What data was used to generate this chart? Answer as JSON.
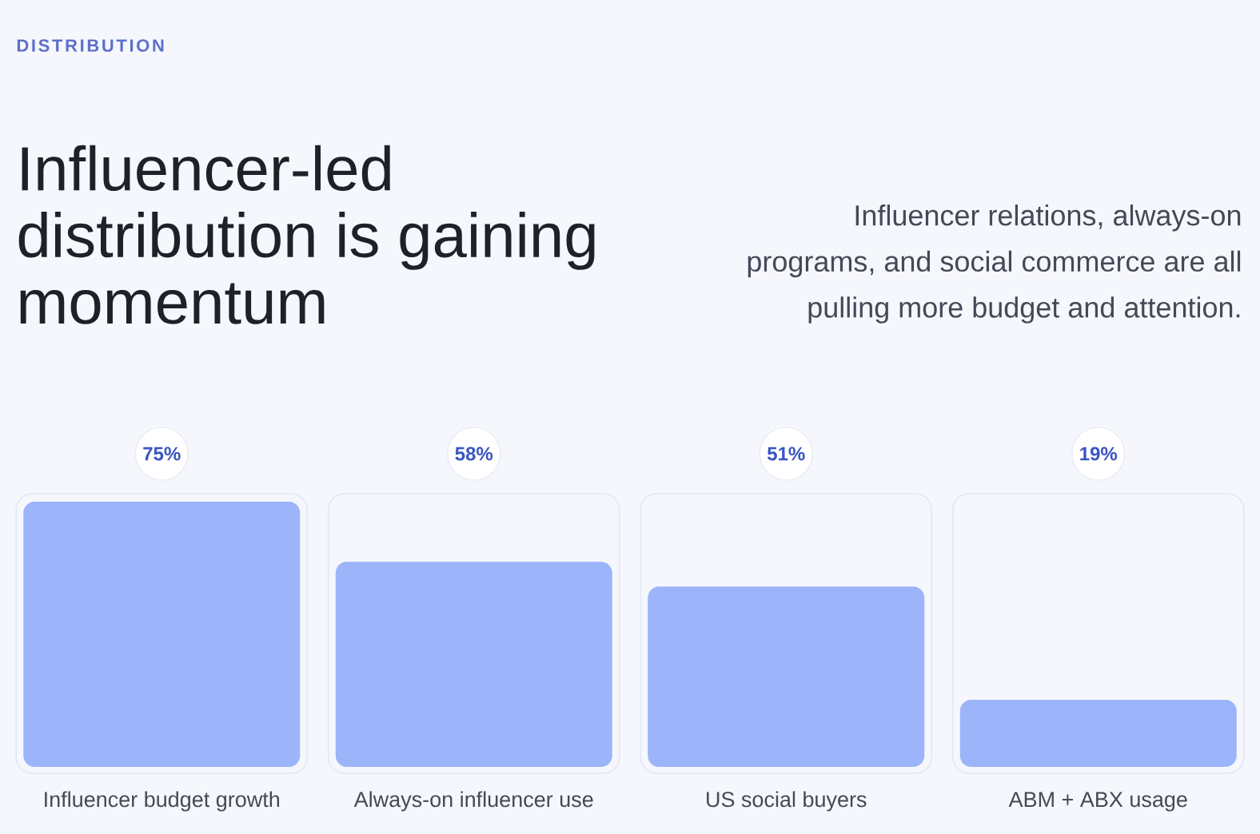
{
  "chart_data": {
    "type": "bar",
    "title": "Influencer-led distribution is gaining momentum",
    "subtitle": "Influencer relations, always-on programs, and social commerce are all pulling more budget and attention.",
    "annotations": [
      "DISTRIBUTION"
    ],
    "categories": [
      "Influencer budget growth",
      "Always-on influencer use",
      "US social buyers",
      "ABM + ABX usage"
    ],
    "values": [
      75,
      58,
      51,
      19
    ],
    "value_labels": [
      "75%",
      "58%",
      "51%",
      "19%"
    ],
    "color": "#9cb4f9"
  }
}
